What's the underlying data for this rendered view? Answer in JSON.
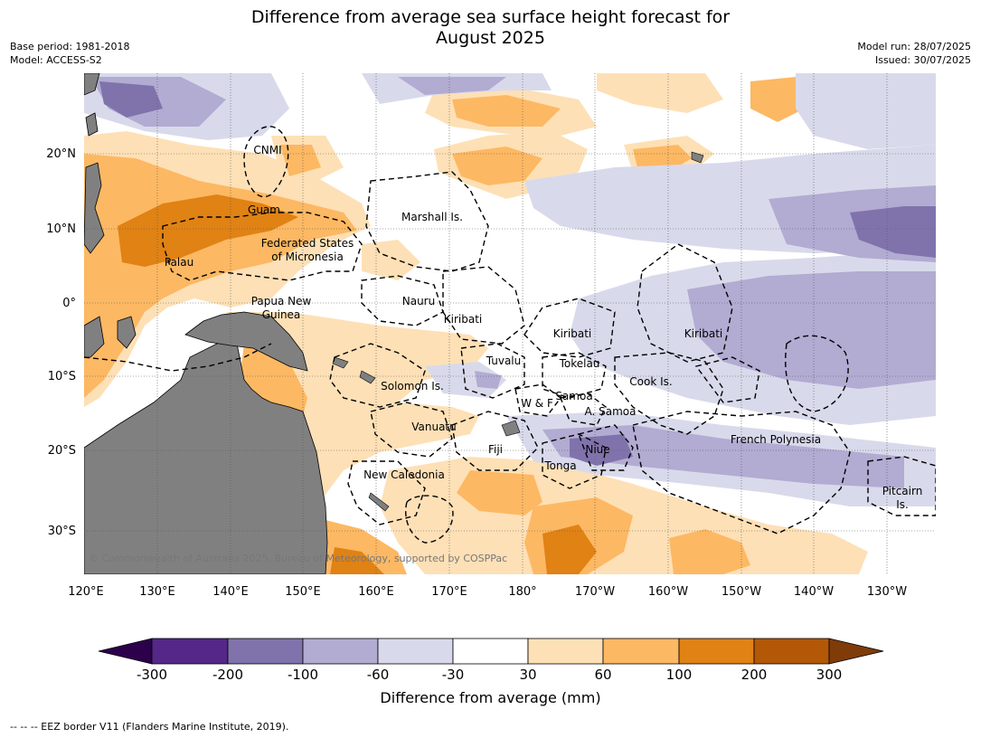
{
  "title": {
    "line1": "Difference from average sea surface height forecast for",
    "line2": "August 2025"
  },
  "meta": {
    "base_period": "Base period: 1981-2018",
    "model": "Model: ACCESS-S2",
    "model_run": "Model run: 28/07/2025",
    "issued": "Issued: 30/07/2025"
  },
  "map": {
    "lon_ticks": [
      "120°E",
      "130°E",
      "140°E",
      "150°E",
      "160°E",
      "170°E",
      "180°",
      "170°W",
      "160°W",
      "150°W",
      "140°W",
      "130°W"
    ],
    "lat_ticks": [
      "20°N",
      "10°N",
      "0°",
      "10°S",
      "20°S",
      "30°S"
    ],
    "regions": {
      "cnmi": "CNMI",
      "guam": "Guam",
      "marshall": "Marshall Is.",
      "fsm_1": "Federated States",
      "fsm_2": "of Micronesia",
      "palau": "Palau",
      "png_1": "Papua New",
      "png_2": "Guinea",
      "nauru": "Nauru",
      "kiribati_w": "Kiribati",
      "kiribati_c": "Kiribati",
      "kiribati_e": "Kiribati",
      "tuvalu": "Tuvalu",
      "tokelau": "Tokelau",
      "cook": "Cook Is.",
      "solomon": "Solomon Is.",
      "samoa": "Samoa",
      "wf": "W & F",
      "asamoa": "A. Samoa",
      "vanuatu": "Vanuatu",
      "fiji": "Fiji",
      "niue": "Niue",
      "tonga": "Tonga",
      "french_polynesia": "French Polynesia",
      "new_caledonia": "New Caledonia",
      "pitcairn_1": "Pitcairn",
      "pitcairn_2": "Is."
    },
    "copyright": "© Commonwealth of Australia 2025, Bureau of Meteorology, supported by COSPPac",
    "colors": {
      "land": "#808080",
      "ocean": "#ffffff",
      "neg_300": "#2d004b",
      "neg_200": "#542788",
      "neg_100": "#8073ac",
      "neg_60": "#b2abd2",
      "neg_30": "#d8daeb",
      "pos_30": "#fee0b6",
      "pos_60": "#fdb863",
      "pos_100": "#e08214",
      "pos_200": "#b35806",
      "pos_300": "#7f3b08"
    }
  },
  "colorbar": {
    "ticks": [
      "-300",
      "-200",
      "-100",
      "-60",
      "-30",
      "30",
      "60",
      "100",
      "200",
      "300"
    ],
    "label": "Difference from average (mm)"
  },
  "legend_note": "--  --  -- EEZ border V11 (Flanders Marine Institute, 2019)."
}
